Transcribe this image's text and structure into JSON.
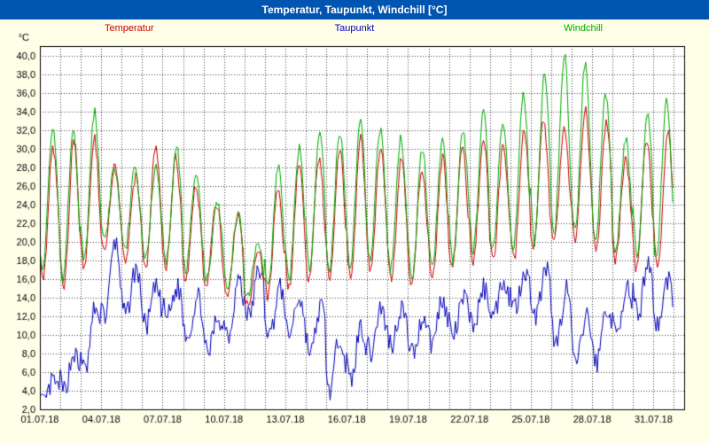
{
  "title_bar": {
    "text": "Temperatur, Taupunkt, Windchill [°C]"
  },
  "legend": [
    {
      "label": "Temperatur",
      "color": "#cc0000"
    },
    {
      "label": "Taupunkt",
      "color": "#0000bb"
    },
    {
      "label": "Windchill",
      "color": "#00aa00"
    }
  ],
  "colors": {
    "background": "#ffffe8",
    "title_bar": "#0055b0",
    "plot_background": "#ffffff",
    "grid": "#444444",
    "border": "#000000",
    "temperatur": "#cc0000",
    "taupunkt": "#0000bb",
    "windchill": "#00aa00"
  },
  "chart_data": {
    "type": "line",
    "title": "Temperatur, Taupunkt, Windchill [°C]",
    "xlabel": "",
    "ylabel": "°C",
    "grid": true,
    "legend_position": "top",
    "y_axis": {
      "unit": "°C",
      "min": 2,
      "max": 40,
      "step": 2,
      "plot_max": 41,
      "decimal_separator": ",",
      "decimals": 1
    },
    "x_axis": {
      "tick_labels": [
        "01.07.18",
        "04.07.18",
        "07.07.18",
        "10.07.18",
        "13.07.18",
        "16.07.18",
        "19.07.18",
        "22.07.18",
        "25.07.18",
        "28.07.18",
        "31.07.18"
      ],
      "tick_day_offsets": [
        0,
        3,
        6,
        9,
        12,
        15,
        18,
        21,
        24,
        27,
        30
      ],
      "days_total": 31.5,
      "grid_step_days": 1
    },
    "series": [
      {
        "name": "Temperatur",
        "color": "#cc0000",
        "daily_min": [
          16,
          15,
          17,
          19,
          18,
          17,
          17,
          16,
          15,
          14,
          13,
          14,
          15,
          16,
          16,
          16,
          17,
          16,
          15,
          16,
          17,
          18,
          18,
          18,
          19,
          20,
          20,
          19,
          18,
          17,
          17
        ],
        "daily_max": [
          30,
          31,
          31,
          28,
          27,
          30,
          29,
          26,
          24,
          23,
          19,
          26,
          28,
          29,
          30,
          31,
          30,
          29,
          28,
          29,
          30,
          31,
          30,
          32,
          33,
          32,
          34,
          33,
          29,
          31,
          32
        ]
      },
      {
        "name": "Taupunkt",
        "color": "#0000bb",
        "daily_min": [
          2.5,
          4,
          6,
          12,
          12,
          11,
          12,
          10,
          8,
          10,
          12,
          10,
          10,
          8,
          4,
          5,
          8,
          9,
          8,
          9,
          10,
          11,
          12,
          13,
          12,
          9,
          7,
          7,
          10,
          12,
          11
        ],
        "daily_max": [
          5,
          8,
          13,
          20,
          17,
          15,
          15,
          14,
          12,
          16,
          17,
          15,
          14,
          13,
          10,
          11,
          13,
          13,
          12,
          14,
          14,
          15,
          16,
          17,
          17,
          15,
          12,
          13,
          15,
          18,
          16
        ]
      },
      {
        "name": "Windchill",
        "color": "#00aa00",
        "daily_min": [
          17,
          16,
          18,
          20,
          19,
          18,
          18,
          17,
          16,
          15,
          14,
          15,
          16,
          17,
          17,
          17,
          18,
          17,
          16,
          17,
          18,
          19,
          19,
          19,
          20,
          21,
          21,
          20,
          19,
          18,
          18
        ],
        "daily_max": [
          32,
          32,
          34,
          28,
          28,
          28,
          30,
          27,
          24,
          23,
          20,
          28,
          30,
          32,
          32,
          33,
          32,
          31,
          30,
          31,
          32,
          34,
          33,
          36,
          38,
          40,
          39,
          36,
          31,
          34,
          35
        ]
      }
    ]
  }
}
